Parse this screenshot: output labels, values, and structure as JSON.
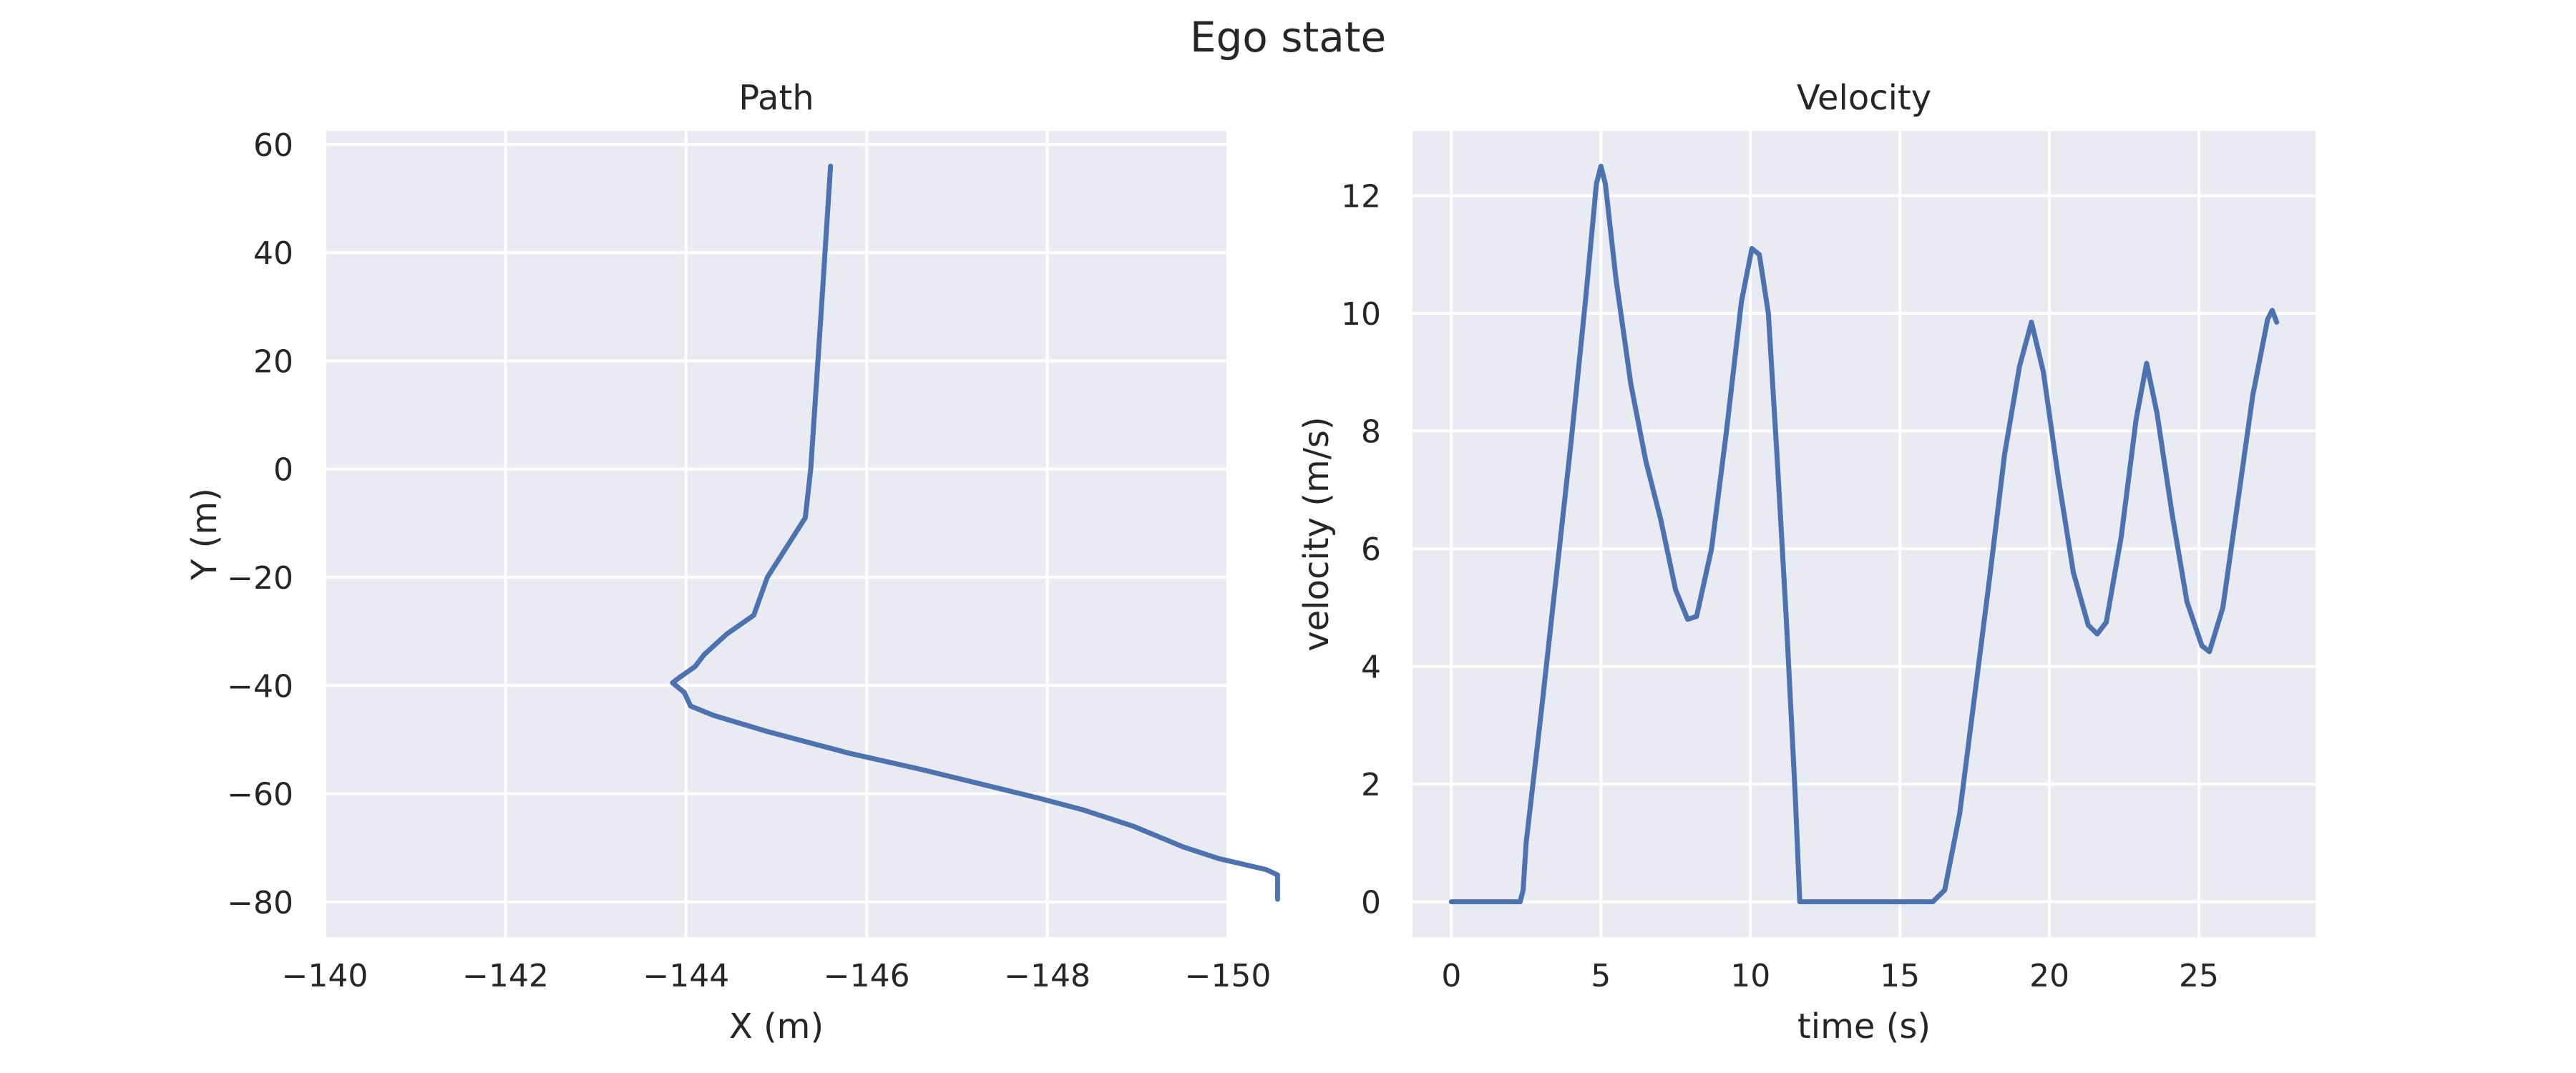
{
  "figure": {
    "suptitle": "Ego state"
  },
  "chart_data": [
    {
      "type": "line",
      "title": "Path",
      "xlabel": "X (m)",
      "ylabel": "Y (m)",
      "xlim": [
        -140,
        -150
      ],
      "ylim": [
        -86.5,
        62.5
      ],
      "x_inverted": true,
      "grid": true,
      "xticks": [
        -140,
        -142,
        -144,
        -146,
        -148,
        -150
      ],
      "yticks": [
        -80,
        -60,
        -40,
        -20,
        0,
        20,
        40,
        60
      ],
      "xtick_labels": [
        "−140",
        "−142",
        "−144",
        "−146",
        "−148",
        "−150"
      ],
      "ytick_labels": [
        "−80",
        "−60",
        "−40",
        "−20",
        "0",
        "20",
        "40",
        "60"
      ],
      "series": [
        {
          "color": "#4c72b0",
          "points": [
            [
              -145.6,
              56
            ],
            [
              -145.5,
              30
            ],
            [
              -145.38,
              0
            ],
            [
              -145.32,
              -9
            ],
            [
              -144.9,
              -20
            ],
            [
              -144.75,
              -27
            ],
            [
              -144.45,
              -30.5
            ],
            [
              -144.2,
              -34.3
            ],
            [
              -144.1,
              -36.5
            ],
            [
              -143.92,
              -38.6
            ],
            [
              -143.85,
              -39.5
            ],
            [
              -143.98,
              -41.3
            ],
            [
              -144.05,
              -43.8
            ],
            [
              -144.3,
              -45.5
            ],
            [
              -144.9,
              -48.5
            ],
            [
              -145.8,
              -52.5
            ],
            [
              -146.6,
              -55.5
            ],
            [
              -147.9,
              -60.8
            ],
            [
              -148.4,
              -63
            ],
            [
              -148.95,
              -66
            ],
            [
              -149.5,
              -69.8
            ],
            [
              -149.9,
              -72
            ],
            [
              -150.42,
              -74
            ],
            [
              -150.55,
              -75
            ],
            [
              -150.55,
              -79.5
            ]
          ]
        }
      ]
    },
    {
      "type": "line",
      "title": "Velocity",
      "xlabel": "time (s)",
      "ylabel": "velocity (m/s)",
      "xlim": [
        -1.3,
        28.9
      ],
      "ylim": [
        -0.6,
        13.1
      ],
      "grid": true,
      "xticks": [
        0,
        5,
        10,
        15,
        20,
        25
      ],
      "yticks": [
        0,
        2,
        4,
        6,
        8,
        10,
        12
      ],
      "xtick_labels": [
        "0",
        "5",
        "10",
        "15",
        "20",
        "25"
      ],
      "ytick_labels": [
        "0",
        "2",
        "4",
        "6",
        "8",
        "10",
        "12"
      ],
      "series": [
        {
          "color": "#4c72b0",
          "points": [
            [
              0,
              0
            ],
            [
              2.3,
              0
            ],
            [
              2.4,
              0.2
            ],
            [
              2.5,
              1.0
            ],
            [
              3.0,
              3.2
            ],
            [
              3.5,
              5.5
            ],
            [
              4.0,
              7.8
            ],
            [
              4.5,
              10.3
            ],
            [
              4.85,
              12.2
            ],
            [
              5.0,
              12.5
            ],
            [
              5.15,
              12.2
            ],
            [
              5.5,
              10.6
            ],
            [
              6.0,
              8.8
            ],
            [
              6.5,
              7.5
            ],
            [
              7.0,
              6.5
            ],
            [
              7.5,
              5.3
            ],
            [
              7.9,
              4.8
            ],
            [
              8.2,
              4.85
            ],
            [
              8.7,
              6.0
            ],
            [
              9.2,
              8.0
            ],
            [
              9.7,
              10.2
            ],
            [
              10.05,
              11.1
            ],
            [
              10.3,
              11.0
            ],
            [
              10.6,
              10.0
            ],
            [
              10.9,
              7.5
            ],
            [
              11.2,
              4.8
            ],
            [
              11.5,
              1.8
            ],
            [
              11.65,
              0
            ],
            [
              16.1,
              0
            ],
            [
              16.5,
              0.2
            ],
            [
              17.0,
              1.5
            ],
            [
              17.5,
              3.5
            ],
            [
              18.0,
              5.5
            ],
            [
              18.5,
              7.6
            ],
            [
              19.0,
              9.1
            ],
            [
              19.4,
              9.85
            ],
            [
              19.8,
              9.0
            ],
            [
              20.3,
              7.2
            ],
            [
              20.8,
              5.6
            ],
            [
              21.3,
              4.7
            ],
            [
              21.6,
              4.55
            ],
            [
              21.9,
              4.75
            ],
            [
              22.4,
              6.2
            ],
            [
              22.9,
              8.2
            ],
            [
              23.25,
              9.15
            ],
            [
              23.6,
              8.3
            ],
            [
              24.1,
              6.6
            ],
            [
              24.6,
              5.1
            ],
            [
              25.1,
              4.35
            ],
            [
              25.35,
              4.25
            ],
            [
              25.8,
              5.0
            ],
            [
              26.3,
              6.8
            ],
            [
              26.8,
              8.6
            ],
            [
              27.3,
              9.9
            ],
            [
              27.45,
              10.05
            ],
            [
              27.6,
              9.85
            ]
          ]
        }
      ]
    }
  ]
}
